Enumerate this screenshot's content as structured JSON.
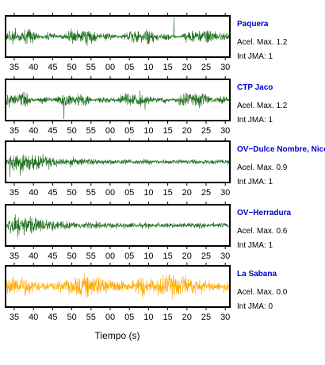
{
  "colors": {
    "green": "#1a6b1a",
    "orange": "#ffaa00",
    "station_label": "#0000cc"
  },
  "x_axis": {
    "label": "Tiempo (s)",
    "tick_labels": [
      "35",
      "40",
      "45",
      "50",
      "55",
      "00",
      "05",
      "10",
      "15",
      "20",
      "25",
      "30"
    ]
  },
  "chart_data": [
    {
      "type": "line",
      "station": "Paquera",
      "series_color": "green",
      "envelope": "noise",
      "info_1": "Acel. Max. 1.2",
      "info_2": "Int JMA: 1"
    },
    {
      "type": "line",
      "station": "CTP Jaco",
      "series_color": "green",
      "envelope": "noise",
      "info_1": "Acel. Max. 1.2",
      "info_2": "Int JMA: 1"
    },
    {
      "type": "line",
      "station": "OV−Dulce Nombre, Nicoya",
      "series_color": "green",
      "envelope": "decay",
      "info_1": "Acel. Max. 0.9",
      "info_2": "Int JMA: 1"
    },
    {
      "type": "line",
      "station": "OV−Herradura",
      "series_color": "green",
      "envelope": "decay",
      "info_1": "Acel. Max. 0.6",
      "info_2": "Int JMA: 1"
    },
    {
      "type": "line",
      "station": "La Sabana",
      "series_color": "orange",
      "envelope": "noise",
      "info_1": "Acel. Max. 0.0",
      "info_2": "Int JMA: 0"
    }
  ]
}
